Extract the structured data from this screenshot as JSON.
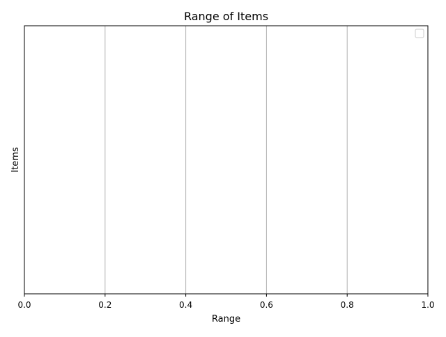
{
  "chart_data": {
    "type": "bar",
    "orientation": "horizontal",
    "title": "Range of Items",
    "xlabel": "Range",
    "ylabel": "Items",
    "xlim": [
      0,
      1
    ],
    "xticks": [
      0.0,
      0.2,
      0.4,
      0.6,
      0.8,
      1.0
    ],
    "xtick_labels": [
      "0.0",
      "0.2",
      "0.4",
      "0.6",
      "0.8",
      "1.0"
    ],
    "categories": [],
    "series": [],
    "grid": {
      "x": true,
      "y": false
    },
    "legend": {
      "visible": true,
      "placement": "top-right",
      "entries": []
    },
    "colors": {
      "background": "#ffffff",
      "axes": "#000000",
      "grid": "#b0b0b0",
      "legend_border": "#cccccc"
    }
  }
}
